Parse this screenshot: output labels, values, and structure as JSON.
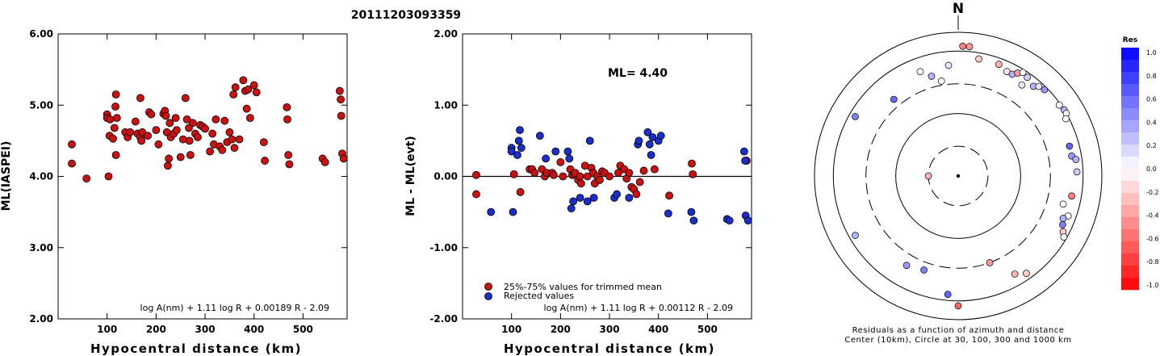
{
  "figure": {
    "title": "20111203093359"
  },
  "chart_data": [
    {
      "type": "scatter",
      "panel": "left",
      "ylabel": "ML(IASPEI)",
      "xlabel": "Hypocentral distance (km)",
      "xlim": [
        0,
        590
      ],
      "ylim": [
        2.0,
        6.0
      ],
      "xticks": [
        "100",
        "200",
        "300",
        "400",
        "500"
      ],
      "yticks": [
        "2.00",
        "3.00",
        "4.00",
        "5.00",
        "6.00"
      ],
      "formula": "log A(nm) + 1.11 log R + 0.00189 R - 2.09",
      "point_color": "#cc1111",
      "series": [
        {
          "x": [
            28,
            28,
            58,
            100,
            100,
            103,
            105,
            106,
            112,
            115,
            117,
            118,
            118,
            120,
            137,
            142,
            147,
            158,
            162,
            168,
            168,
            170,
            172,
            183,
            186,
            190,
            200,
            205,
            215,
            218,
            220,
            222,
            224,
            226,
            228,
            230,
            236,
            240,
            242,
            250,
            255,
            260,
            263,
            267,
            268,
            270,
            275,
            280,
            285,
            290,
            295,
            300,
            310,
            315,
            318,
            322,
            330,
            335,
            340,
            345,
            350,
            355,
            358,
            360,
            362,
            370,
            378,
            382,
            385,
            388,
            392,
            400,
            405,
            420,
            422,
            467,
            468,
            470,
            472,
            540,
            545,
            575,
            577,
            578,
            580,
            583
          ],
          "y": [
            4.45,
            4.18,
            3.97,
            4.87,
            4.82,
            4.0,
            4.57,
            4.8,
            4.53,
            4.68,
            4.98,
            5.15,
            4.3,
            4.82,
            4.62,
            4.55,
            4.62,
            4.77,
            4.6,
            5.1,
            4.55,
            4.5,
            4.62,
            4.57,
            4.9,
            4.87,
            4.65,
            4.45,
            4.88,
            4.92,
            4.85,
            4.62,
            4.15,
            4.25,
            4.75,
            4.55,
            4.6,
            4.82,
            4.65,
            4.27,
            4.52,
            5.1,
            4.8,
            4.68,
            4.5,
            4.3,
            4.75,
            4.6,
            4.55,
            4.72,
            4.7,
            4.67,
            4.35,
            4.6,
            4.45,
            4.8,
            4.42,
            4.37,
            4.78,
            4.48,
            4.62,
            4.52,
            5.15,
            4.4,
            5.25,
            4.52,
            5.35,
            5.2,
            4.95,
            5.22,
            4.82,
            5.28,
            5.18,
            4.48,
            4.22,
            4.97,
            4.8,
            4.3,
            4.17,
            4.25,
            4.2,
            5.2,
            5.08,
            4.85,
            4.32,
            4.25
          ]
        }
      ]
    },
    {
      "type": "scatter",
      "panel": "middle",
      "ylabel": "ML - ML(evt)",
      "xlabel": "Hypocentral distance (km)",
      "xlim": [
        0,
        590
      ],
      "ylim": [
        -2.0,
        2.0
      ],
      "xticks": [
        "100",
        "200",
        "300",
        "400",
        "500"
      ],
      "yticks": [
        "-2.00",
        "-1.00",
        "0.00",
        "1.00",
        "2.00"
      ],
      "annotation": "ML= 4.40",
      "formula": "log A(nm) + 1.11 log R + 0.00112 R - 2.09",
      "reference_line_y": 0.0,
      "legend": [
        {
          "label": "25%-75% values for trimmed mean",
          "color": "#cc1111"
        },
        {
          "label": "Rejected values",
          "color": "#1a2ecc"
        }
      ],
      "series": [
        {
          "color": "#cc1111",
          "x": [
            28,
            28,
            105,
            118,
            137,
            142,
            147,
            162,
            168,
            172,
            183,
            186,
            200,
            205,
            220,
            224,
            228,
            230,
            236,
            240,
            242,
            250,
            255,
            263,
            267,
            270,
            275,
            280,
            285,
            290,
            300,
            318,
            322,
            330,
            335,
            340,
            345,
            350,
            355,
            362,
            370,
            392,
            422,
            468,
            470,
            580
          ],
          "y": [
            0.02,
            -0.25,
            0.03,
            -0.22,
            0.1,
            0.1,
            0.05,
            0.1,
            0.0,
            0.05,
            0.05,
            0.02,
            0.2,
            0.0,
            0.1,
            0.02,
            0.03,
            0.05,
            -0.05,
            0.0,
            -0.1,
            0.15,
            0.0,
            0.12,
            0.05,
            -0.1,
            0.0,
            -0.05,
            0.07,
            0.05,
            0.0,
            0.05,
            0.15,
            0.1,
            -0.03,
            0.05,
            -0.15,
            -0.18,
            -0.25,
            -0.08,
            0.08,
            0.1,
            -0.27,
            0.18,
            0.03,
            0.22
          ]
        },
        {
          "color": "#1a2ecc",
          "x": [
            58,
            100,
            100,
            103,
            112,
            115,
            117,
            120,
            158,
            170,
            190,
            215,
            218,
            222,
            226,
            240,
            255,
            260,
            268,
            310,
            315,
            340,
            358,
            360,
            378,
            382,
            385,
            388,
            400,
            405,
            420,
            467,
            472,
            540,
            545,
            575,
            577,
            578,
            583
          ],
          "y": [
            -0.5,
            0.4,
            0.35,
            -0.5,
            0.3,
            0.5,
            0.65,
            0.4,
            0.57,
            0.25,
            0.35,
            0.35,
            0.25,
            -0.45,
            -0.35,
            -0.3,
            -0.35,
            0.5,
            -0.3,
            -0.3,
            -0.25,
            -0.3,
            0.45,
            0.5,
            0.62,
            0.45,
            0.3,
            0.55,
            0.5,
            0.57,
            -0.52,
            -0.5,
            -0.62,
            -0.6,
            -0.62,
            0.35,
            0.22,
            -0.55,
            -0.62
          ]
        }
      ]
    },
    {
      "type": "scatter",
      "panel": "right",
      "subtype": "polar",
      "north_label": "N",
      "caption_line1": "Residuals as a function of azimuth and distance",
      "caption_line2": "Center (10km), Circle at 30, 100, 300 and 1000 km",
      "colorbar_title": "Res",
      "colorbar_ticks": [
        "1.0",
        "0.8",
        "0.6",
        "0.4",
        "0.2",
        "0.0",
        "-0.2",
        "-0.4",
        "-0.6",
        "-0.8",
        "-1.0"
      ],
      "colorbar_range": [
        -1.0,
        1.0
      ],
      "positive_color": "#0000ff",
      "negative_color": "#ff0000",
      "rings_km": [
        30,
        100,
        300,
        1000
      ],
      "points": [
        {
          "az": 2,
          "dist": 1200,
          "res": -0.5
        },
        {
          "az": 5,
          "dist": 1200,
          "res": -0.4
        },
        {
          "az": 10,
          "dist": 800,
          "res": -0.2
        },
        {
          "az": 20,
          "dist": 800,
          "res": -0.3
        },
        {
          "az": 25,
          "dist": 700,
          "res": -0.1
        },
        {
          "az": 28,
          "dist": 700,
          "res": 0.3
        },
        {
          "az": 30,
          "dist": 800,
          "res": -0.4
        },
        {
          "az": 32,
          "dist": 900,
          "res": 0.0
        },
        {
          "az": 35,
          "dist": 850,
          "res": 0.2
        },
        {
          "az": 40,
          "dist": 750,
          "res": 0.3
        },
        {
          "az": 42,
          "dist": 850,
          "res": 0.1
        },
        {
          "az": 35,
          "dist": 600,
          "res": 0.1
        },
        {
          "az": 45,
          "dist": 900,
          "res": 0.4
        },
        {
          "az": 55,
          "dist": 950,
          "res": 0.0
        },
        {
          "az": 58,
          "dist": 1000,
          "res": 0.3
        },
        {
          "az": 60,
          "dist": 1000,
          "res": 0.0
        },
        {
          "az": 62,
          "dist": 900,
          "res": 0.0
        },
        {
          "az": 75,
          "dist": 700,
          "res": 0.6
        },
        {
          "az": 80,
          "dist": 700,
          "res": 0.4
        },
        {
          "az": 82,
          "dist": 800,
          "res": 0.3
        },
        {
          "az": 88,
          "dist": 800,
          "res": 0.2
        },
        {
          "az": 100,
          "dist": 700,
          "res": -0.5
        },
        {
          "az": 105,
          "dist": 550,
          "res": 0.0
        },
        {
          "az": 110,
          "dist": 750,
          "res": 0.0
        },
        {
          "az": 112,
          "dist": 650,
          "res": 0.3
        },
        {
          "az": 115,
          "dist": 700,
          "res": 0.5
        },
        {
          "az": 118,
          "dist": 800,
          "res": -0.2
        },
        {
          "az": 120,
          "dist": 900,
          "res": 0.0
        },
        {
          "az": 145,
          "dist": 800,
          "res": -0.2
        },
        {
          "az": 150,
          "dist": 650,
          "res": -0.3
        },
        {
          "az": 160,
          "dist": 300,
          "res": -0.4
        },
        {
          "az": 180,
          "dist": 1200,
          "res": -0.6
        },
        {
          "az": 185,
          "dist": 800,
          "res": 0.6
        },
        {
          "az": 200,
          "dist": 400,
          "res": 0.5
        },
        {
          "az": 210,
          "dist": 450,
          "res": 0.4
        },
        {
          "az": 240,
          "dist": 800,
          "res": 0.3
        },
        {
          "az": 270,
          "dist": 30,
          "res": -0.3
        },
        {
          "az": 300,
          "dist": 800,
          "res": 0.5
        },
        {
          "az": 320,
          "dist": 400,
          "res": 0.6
        },
        {
          "az": 340,
          "dist": 600,
          "res": 0.0
        },
        {
          "az": 345,
          "dist": 450,
          "res": 0.3
        },
        {
          "az": 350,
          "dist": 350,
          "res": 0.0
        },
        {
          "az": 355,
          "dist": 600,
          "res": 0.1
        }
      ]
    }
  ]
}
